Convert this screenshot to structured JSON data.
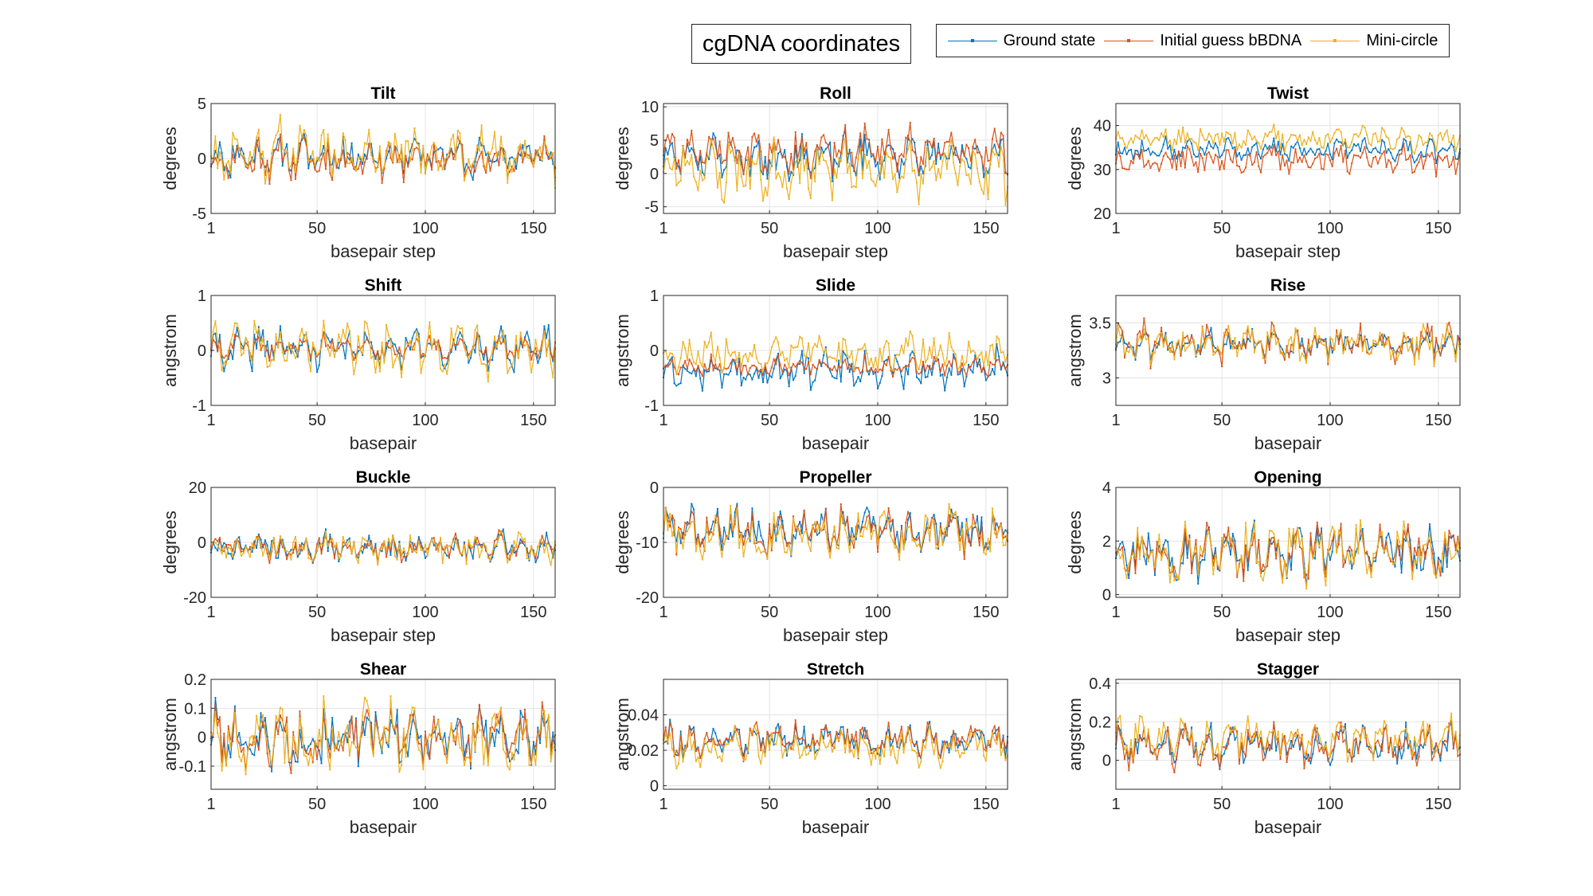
{
  "figure": {
    "title": "cgDNA coordinates",
    "legend": [
      {
        "name": "Ground state",
        "color": "#0072BD"
      },
      {
        "name": "Initial guess bBDNA",
        "color": "#D95319"
      },
      {
        "name": "Mini-circle",
        "color": "#EDB120"
      }
    ]
  },
  "chart_data": [
    {
      "type": "line",
      "title": "Tilt",
      "xlabel": "basepair step",
      "ylabel": "degrees",
      "xlim": [
        1,
        160
      ],
      "ylim": [
        -5,
        5
      ],
      "xticks": [
        "1",
        "50",
        "100",
        "150"
      ],
      "yticks": [
        "-5",
        "0",
        "5"
      ],
      "ytick_values": [
        -5,
        0,
        5
      ],
      "grid": true,
      "gen": {
        "base": [
          0.2,
          0,
          0.5
        ],
        "amp": [
          1.8,
          1.8,
          2.5
        ],
        "seed": 11
      }
    },
    {
      "type": "line",
      "title": "Roll",
      "xlabel": "basepair step",
      "ylabel": "degrees",
      "xlim": [
        1,
        160
      ],
      "ylim": [
        -6,
        10.5
      ],
      "xticks": [
        "1",
        "50",
        "100",
        "150"
      ],
      "yticks": [
        "-5",
        "0",
        "5",
        "10"
      ],
      "ytick_values": [
        -5,
        0,
        5,
        10
      ],
      "grid": true,
      "gen": {
        "base": [
          2.5,
          3.5,
          0.5
        ],
        "amp": [
          3,
          3,
          4
        ],
        "seed": 23
      }
    },
    {
      "type": "line",
      "title": "Twist",
      "xlabel": "basepair step",
      "ylabel": "degrees",
      "xlim": [
        1,
        160
      ],
      "ylim": [
        20,
        45
      ],
      "xticks": [
        "1",
        "50",
        "100",
        "150"
      ],
      "yticks": [
        "20",
        "30",
        "40"
      ],
      "ytick_values": [
        20,
        30,
        40
      ],
      "grid": true,
      "gen": {
        "base": [
          34.5,
          32,
          37
        ],
        "amp": [
          2.5,
          3,
          2.5
        ],
        "seed": 37
      }
    },
    {
      "type": "line",
      "title": "Shift",
      "xlabel": "basepair",
      "ylabel": "angstrom",
      "xlim": [
        1,
        160
      ],
      "ylim": [
        -1,
        1
      ],
      "xticks": [
        "1",
        "50",
        "100",
        "150"
      ],
      "yticks": [
        "-1",
        "0",
        "1"
      ],
      "ytick_values": [
        -1,
        0,
        1
      ],
      "grid": true,
      "gen": {
        "base": [
          0.05,
          0.05,
          0.05
        ],
        "amp": [
          0.35,
          0.2,
          0.45
        ],
        "seed": 41
      }
    },
    {
      "type": "line",
      "title": "Slide",
      "xlabel": "basepair",
      "ylabel": "angstrom",
      "xlim": [
        1,
        160
      ],
      "ylim": [
        -1,
        1
      ],
      "xticks": [
        "1",
        "50",
        "100",
        "150"
      ],
      "yticks": [
        "-1",
        "0",
        "1"
      ],
      "ytick_values": [
        -1,
        0,
        1
      ],
      "grid": true,
      "gen": {
        "base": [
          -0.35,
          -0.3,
          -0.05
        ],
        "amp": [
          0.35,
          0.18,
          0.35
        ],
        "seed": 53
      }
    },
    {
      "type": "line",
      "title": "Rise",
      "xlabel": "basepair",
      "ylabel": "angstrom",
      "xlim": [
        1,
        160
      ],
      "ylim": [
        2.75,
        3.75
      ],
      "xticks": [
        "1",
        "50",
        "100",
        "150"
      ],
      "yticks": [
        "3",
        "3.5"
      ],
      "ytick_values": [
        3,
        3.5
      ],
      "grid": true,
      "gen": {
        "base": [
          3.3,
          3.3,
          3.3
        ],
        "amp": [
          0.12,
          0.18,
          0.15
        ],
        "seed": 61
      }
    },
    {
      "type": "line",
      "title": "Buckle",
      "xlabel": "basepair step",
      "ylabel": "degrees",
      "xlim": [
        1,
        160
      ],
      "ylim": [
        -20,
        20
      ],
      "xticks": [
        "1",
        "50",
        "100",
        "150"
      ],
      "yticks": [
        "-20",
        "0",
        "20"
      ],
      "ytick_values": [
        -20,
        0,
        20
      ],
      "grid": true,
      "gen": {
        "base": [
          -2,
          -2,
          -2
        ],
        "amp": [
          5,
          5,
          5.5
        ],
        "seed": 71
      }
    },
    {
      "type": "line",
      "title": "Propeller",
      "xlabel": "basepair step",
      "ylabel": "degrees",
      "xlim": [
        1,
        160
      ],
      "ylim": [
        -20,
        0
      ],
      "xticks": [
        "1",
        "50",
        "100",
        "150"
      ],
      "yticks": [
        "-20",
        "-10",
        "0"
      ],
      "ytick_values": [
        -20,
        -10,
        0
      ],
      "grid": true,
      "gen": {
        "base": [
          -8,
          -8,
          -8.5
        ],
        "amp": [
          4,
          4,
          4.5
        ],
        "seed": 83
      }
    },
    {
      "type": "line",
      "title": "Opening",
      "xlabel": "basepair step",
      "ylabel": "degrees",
      "xlim": [
        1,
        160
      ],
      "ylim": [
        -0.1,
        4
      ],
      "xticks": [
        "1",
        "50",
        "100",
        "150"
      ],
      "yticks": [
        "0",
        "2",
        "4"
      ],
      "ytick_values": [
        0,
        2,
        4
      ],
      "grid": true,
      "gen": {
        "base": [
          1.6,
          1.6,
          1.6
        ],
        "amp": [
          0.9,
          0.9,
          1
        ],
        "seed": 97
      }
    },
    {
      "type": "line",
      "title": "Shear",
      "xlabel": "basepair",
      "ylabel": "angstrom",
      "xlim": [
        1,
        160
      ],
      "ylim": [
        -0.18,
        0.2
      ],
      "xticks": [
        "1",
        "50",
        "100",
        "150"
      ],
      "yticks": [
        "-0.1",
        "0",
        "0.1",
        "0.2"
      ],
      "ytick_values": [
        -0.1,
        0,
        0.1,
        0.2
      ],
      "grid": true,
      "gen": {
        "base": [
          0,
          0,
          0
        ],
        "amp": [
          0.1,
          0.1,
          0.11
        ],
        "seed": 101
      }
    },
    {
      "type": "line",
      "title": "Stretch",
      "xlabel": "basepair",
      "ylabel": "angstrom",
      "xlim": [
        1,
        160
      ],
      "ylim": [
        -0.002,
        0.06
      ],
      "xticks": [
        "1",
        "50",
        "100",
        "150"
      ],
      "yticks": [
        "0",
        "0.02",
        "0.04"
      ],
      "ytick_values": [
        0,
        0.02,
        0.04
      ],
      "grid": true,
      "gen": {
        "base": [
          0.026,
          0.026,
          0.022
        ],
        "amp": [
          0.009,
          0.009,
          0.01
        ],
        "seed": 113
      }
    },
    {
      "type": "line",
      "title": "Stagger",
      "xlabel": "basepair",
      "ylabel": "angstrom",
      "xlim": [
        1,
        160
      ],
      "ylim": [
        -0.15,
        0.42
      ],
      "xticks": [
        "1",
        "50",
        "100",
        "150"
      ],
      "yticks": [
        "0",
        "0.2",
        "0.4"
      ],
      "ytick_values": [
        0,
        0.2,
        0.4
      ],
      "grid": true,
      "gen": {
        "base": [
          0.08,
          0.08,
          0.12
        ],
        "amp": [
          0.1,
          0.1,
          0.1
        ],
        "seed": 127
      }
    }
  ]
}
